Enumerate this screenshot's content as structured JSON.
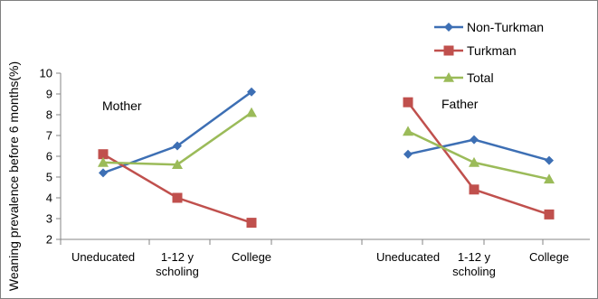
{
  "chart_data": {
    "type": "line",
    "ylabel": "Weaning prevalence before 6 months(%)",
    "ylim": [
      2,
      10
    ],
    "yticks": [
      2,
      3,
      4,
      5,
      6,
      7,
      8,
      9,
      10
    ],
    "grid": false,
    "legend_position": "top-right",
    "panels": [
      {
        "label": "Mother",
        "categories": [
          "Uneducated",
          "1-12 y\nscholing",
          "College"
        ],
        "series": [
          {
            "name": "Non-Turkman",
            "values": [
              5.2,
              6.5,
              9.1
            ]
          },
          {
            "name": "Turkman",
            "values": [
              6.1,
              4.0,
              2.8
            ]
          },
          {
            "name": "Total",
            "values": [
              5.7,
              5.6,
              8.1
            ]
          }
        ]
      },
      {
        "label": "Father",
        "categories": [
          "Uneducated",
          "1-12 y\nscholing",
          "College"
        ],
        "series": [
          {
            "name": "Non-Turkman",
            "values": [
              6.1,
              6.8,
              5.8
            ]
          },
          {
            "name": "Turkman",
            "values": [
              8.6,
              4.4,
              3.2
            ]
          },
          {
            "name": "Total",
            "values": [
              7.2,
              5.7,
              4.9
            ]
          }
        ]
      }
    ],
    "legend": [
      {
        "name": "Non-Turkman",
        "color": "#3d6fb4",
        "marker": "diamond"
      },
      {
        "name": "Turkman",
        "color": "#c0504d",
        "marker": "square"
      },
      {
        "name": "Total",
        "color": "#9bbb59",
        "marker": "triangle"
      }
    ]
  }
}
